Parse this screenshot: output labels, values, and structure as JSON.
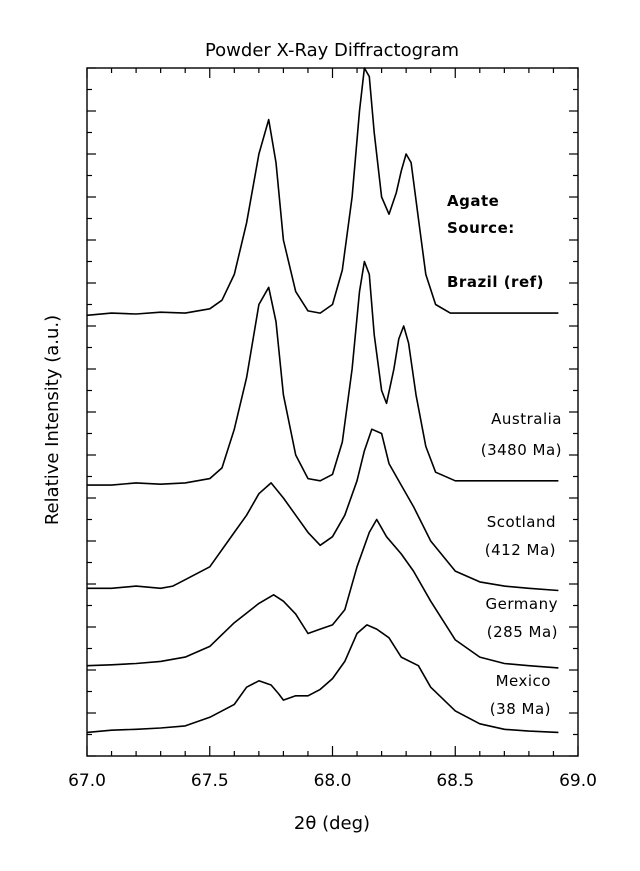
{
  "chart_data": {
    "type": "line",
    "title": "Powder X-Ray Diffractogram",
    "xlabel": "2θ (deg)",
    "ylabel": "Relative Intensity (a.u.)",
    "xlim": [
      67.0,
      69.0
    ],
    "x_ticks": [
      "67.0",
      "67.5",
      "68.0",
      "68.5",
      "69.0"
    ],
    "ylim": [
      0,
      16
    ],
    "legend_header": [
      "Agate",
      "Source:"
    ],
    "grid": false,
    "series": [
      {
        "name": "Brazil (ref)",
        "label_lines": [
          "Brazil (ref)"
        ],
        "label_bold": true,
        "points": [
          [
            67.0,
            10.25
          ],
          [
            67.1,
            10.3
          ],
          [
            67.2,
            10.28
          ],
          [
            67.3,
            10.32
          ],
          [
            67.4,
            10.3
          ],
          [
            67.5,
            10.4
          ],
          [
            67.55,
            10.6
          ],
          [
            67.6,
            11.2
          ],
          [
            67.65,
            12.4
          ],
          [
            67.7,
            14.0
          ],
          [
            67.74,
            14.8
          ],
          [
            67.77,
            13.8
          ],
          [
            67.8,
            12.0
          ],
          [
            67.85,
            10.8
          ],
          [
            67.9,
            10.35
          ],
          [
            67.95,
            10.3
          ],
          [
            68.0,
            10.5
          ],
          [
            68.04,
            11.3
          ],
          [
            68.08,
            13.0
          ],
          [
            68.11,
            15.0
          ],
          [
            68.13,
            16.0
          ],
          [
            68.15,
            15.8
          ],
          [
            68.17,
            14.5
          ],
          [
            68.2,
            13.0
          ],
          [
            68.23,
            12.6
          ],
          [
            68.26,
            13.1
          ],
          [
            68.28,
            13.6
          ],
          [
            68.3,
            14.0
          ],
          [
            68.32,
            13.8
          ],
          [
            68.35,
            12.5
          ],
          [
            68.38,
            11.2
          ],
          [
            68.42,
            10.5
          ],
          [
            68.48,
            10.3
          ],
          [
            68.6,
            10.3
          ],
          [
            68.8,
            10.3
          ],
          [
            68.92,
            10.3
          ]
        ]
      },
      {
        "name": "Australia (3480 Ma)",
        "label_lines": [
          "Australia",
          "(3480 Ma)"
        ],
        "label_bold": false,
        "points": [
          [
            67.0,
            6.3
          ],
          [
            67.1,
            6.3
          ],
          [
            67.2,
            6.35
          ],
          [
            67.3,
            6.32
          ],
          [
            67.4,
            6.35
          ],
          [
            67.5,
            6.45
          ],
          [
            67.55,
            6.7
          ],
          [
            67.6,
            7.6
          ],
          [
            67.65,
            8.8
          ],
          [
            67.7,
            10.5
          ],
          [
            67.74,
            10.9
          ],
          [
            67.77,
            10.1
          ],
          [
            67.8,
            8.4
          ],
          [
            67.85,
            7.0
          ],
          [
            67.9,
            6.45
          ],
          [
            67.95,
            6.4
          ],
          [
            68.0,
            6.55
          ],
          [
            68.04,
            7.3
          ],
          [
            68.08,
            9.0
          ],
          [
            68.11,
            10.8
          ],
          [
            68.13,
            11.5
          ],
          [
            68.15,
            11.2
          ],
          [
            68.17,
            9.8
          ],
          [
            68.2,
            8.5
          ],
          [
            68.22,
            8.2
          ],
          [
            68.25,
            9.0
          ],
          [
            68.27,
            9.7
          ],
          [
            68.29,
            10.0
          ],
          [
            68.31,
            9.6
          ],
          [
            68.34,
            8.4
          ],
          [
            68.38,
            7.2
          ],
          [
            68.42,
            6.6
          ],
          [
            68.5,
            6.4
          ],
          [
            68.6,
            6.4
          ],
          [
            68.8,
            6.4
          ],
          [
            68.92,
            6.4
          ]
        ]
      },
      {
        "name": "Scotland (412 Ma)",
        "label_lines": [
          "Scotland",
          "(412 Ma)"
        ],
        "label_bold": false,
        "points": [
          [
            67.0,
            3.9
          ],
          [
            67.1,
            3.9
          ],
          [
            67.2,
            3.95
          ],
          [
            67.3,
            3.9
          ],
          [
            67.35,
            3.95
          ],
          [
            67.4,
            4.1
          ],
          [
            67.5,
            4.4
          ],
          [
            67.6,
            5.2
          ],
          [
            67.65,
            5.6
          ],
          [
            67.7,
            6.1
          ],
          [
            67.75,
            6.35
          ],
          [
            67.8,
            6.0
          ],
          [
            67.85,
            5.6
          ],
          [
            67.9,
            5.2
          ],
          [
            67.95,
            4.9
          ],
          [
            68.0,
            5.1
          ],
          [
            68.05,
            5.6
          ],
          [
            68.1,
            6.4
          ],
          [
            68.13,
            7.1
          ],
          [
            68.16,
            7.6
          ],
          [
            68.2,
            7.5
          ],
          [
            68.23,
            6.8
          ],
          [
            68.28,
            6.3
          ],
          [
            68.33,
            5.8
          ],
          [
            68.4,
            5.0
          ],
          [
            68.5,
            4.3
          ],
          [
            68.6,
            4.05
          ],
          [
            68.7,
            3.95
          ],
          [
            68.8,
            3.9
          ],
          [
            68.92,
            3.85
          ]
        ]
      },
      {
        "name": "Germany (285 Ma)",
        "label_lines": [
          "Germany",
          "(285 Ma)"
        ],
        "label_bold": false,
        "points": [
          [
            67.0,
            2.1
          ],
          [
            67.1,
            2.12
          ],
          [
            67.2,
            2.15
          ],
          [
            67.3,
            2.2
          ],
          [
            67.4,
            2.3
          ],
          [
            67.5,
            2.55
          ],
          [
            67.6,
            3.1
          ],
          [
            67.7,
            3.55
          ],
          [
            67.76,
            3.75
          ],
          [
            67.8,
            3.6
          ],
          [
            67.85,
            3.3
          ],
          [
            67.9,
            2.85
          ],
          [
            67.95,
            2.95
          ],
          [
            68.0,
            3.05
          ],
          [
            68.05,
            3.4
          ],
          [
            68.1,
            4.4
          ],
          [
            68.15,
            5.2
          ],
          [
            68.18,
            5.5
          ],
          [
            68.22,
            5.1
          ],
          [
            68.28,
            4.7
          ],
          [
            68.33,
            4.3
          ],
          [
            68.4,
            3.6
          ],
          [
            68.5,
            2.7
          ],
          [
            68.6,
            2.3
          ],
          [
            68.7,
            2.15
          ],
          [
            68.8,
            2.1
          ],
          [
            68.92,
            2.05
          ]
        ]
      },
      {
        "name": "Mexico (38 Ma)",
        "label_lines": [
          "Mexico",
          "(38 Ma)"
        ],
        "label_bold": false,
        "points": [
          [
            67.0,
            0.55
          ],
          [
            67.1,
            0.6
          ],
          [
            67.2,
            0.62
          ],
          [
            67.3,
            0.65
          ],
          [
            67.4,
            0.7
          ],
          [
            67.5,
            0.9
          ],
          [
            67.6,
            1.2
          ],
          [
            67.65,
            1.6
          ],
          [
            67.7,
            1.75
          ],
          [
            67.75,
            1.65
          ],
          [
            67.78,
            1.45
          ],
          [
            67.8,
            1.3
          ],
          [
            67.85,
            1.4
          ],
          [
            67.9,
            1.4
          ],
          [
            67.95,
            1.55
          ],
          [
            68.0,
            1.8
          ],
          [
            68.05,
            2.2
          ],
          [
            68.1,
            2.85
          ],
          [
            68.14,
            3.05
          ],
          [
            68.18,
            2.95
          ],
          [
            68.23,
            2.75
          ],
          [
            68.28,
            2.3
          ],
          [
            68.35,
            2.1
          ],
          [
            68.4,
            1.6
          ],
          [
            68.5,
            1.05
          ],
          [
            68.6,
            0.75
          ],
          [
            68.7,
            0.62
          ],
          [
            68.8,
            0.58
          ],
          [
            68.92,
            0.55
          ]
        ]
      }
    ]
  }
}
